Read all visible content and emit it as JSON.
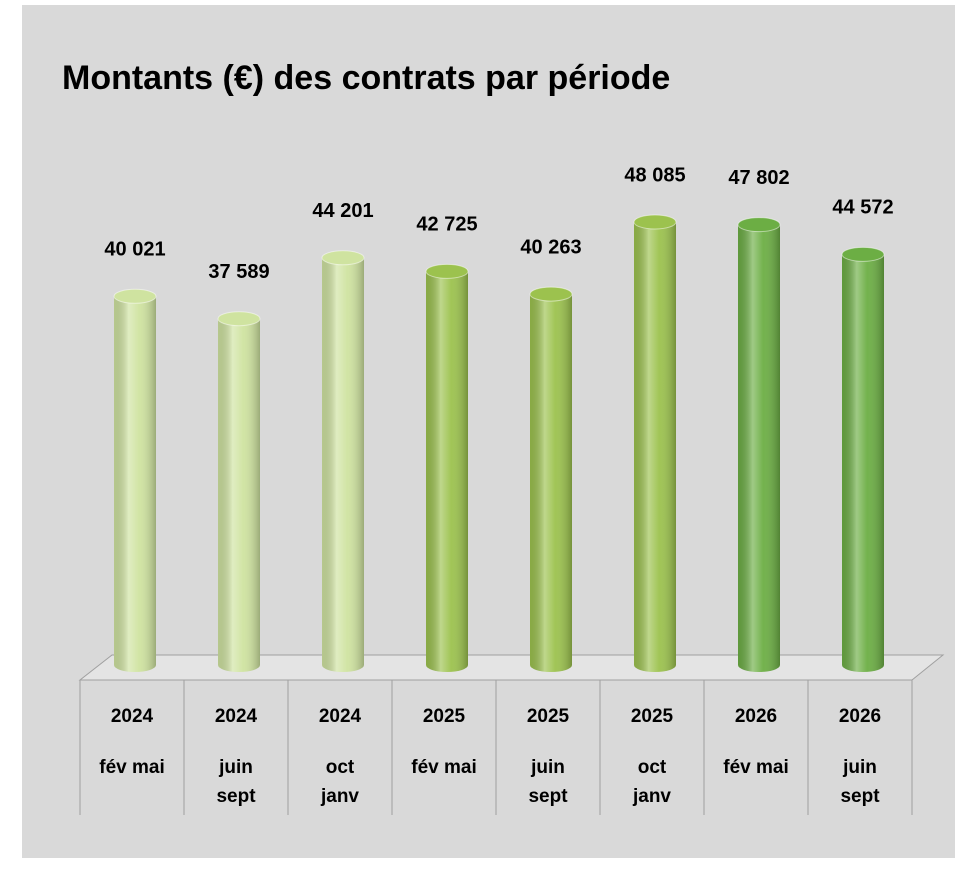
{
  "chart_data": {
    "type": "bar",
    "title": "Montants (€) des contrats par période",
    "categories": [
      "2024",
      "2024",
      "2024",
      "2025",
      "2025",
      "2025",
      "2026",
      "2026"
    ],
    "periods": [
      [
        "fév mai"
      ],
      [
        "juin",
        "sept"
      ],
      [
        "oct",
        "janv"
      ],
      [
        "fév mai"
      ],
      [
        "juin",
        "sept"
      ],
      [
        "oct",
        "janv"
      ],
      [
        "fév mai"
      ],
      [
        "juin",
        "sept"
      ]
    ],
    "values": [
      40021,
      37589,
      44201,
      42725,
      40263,
      48085,
      47802,
      44572
    ],
    "value_labels": [
      "40 021",
      "37 589",
      "44 201",
      "42 725",
      "40 263",
      "48 085",
      "47 802",
      "44 572"
    ],
    "colors": [
      "#cfe3a0",
      "#cfe3a0",
      "#cfe3a0",
      "#9cc24e",
      "#9cc24e",
      "#9cc24e",
      "#6cae44",
      "#6cae44"
    ]
  }
}
